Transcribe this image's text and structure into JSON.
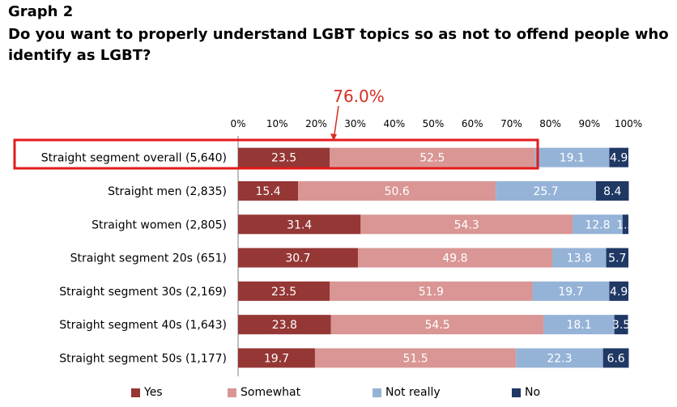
{
  "graph_label": "Graph 2",
  "title": "Do you want to properly understand LGBT topics so as not to offend people who identify as LGBT?",
  "colors": {
    "yes": "#953735",
    "somewhat": "#d99694",
    "not_really": "#95b3d7",
    "no": "#1f3864",
    "highlight": "#e31a1c",
    "callout": "#d62d20"
  },
  "callout_label": "76.0%",
  "chart_data": {
    "type": "bar",
    "orientation": "horizontal",
    "stacked": true,
    "xlim": [
      0,
      100
    ],
    "x_ticks": [
      "0%",
      "10%",
      "20%",
      "30%",
      "40%",
      "50%",
      "60%",
      "70%",
      "80%",
      "90%",
      "100%"
    ],
    "categories": [
      "Straight segment overall (5,640)",
      "Straight men (2,835)",
      "Straight women (2,805)",
      "Straight segment 20s (651)",
      "Straight segment 30s (2,169)",
      "Straight segment 40s (1,643)",
      "Straight segment 50s (1,177)"
    ],
    "series": [
      {
        "name": "Yes",
        "color": "#953735",
        "values": [
          23.5,
          15.4,
          31.4,
          30.7,
          23.5,
          23.8,
          19.7
        ]
      },
      {
        "name": "Somewhat",
        "color": "#d99694",
        "values": [
          52.5,
          50.6,
          54.3,
          49.8,
          51.9,
          54.5,
          51.5
        ]
      },
      {
        "name": "Not really",
        "color": "#95b3d7",
        "values": [
          19.1,
          25.7,
          12.8,
          13.8,
          19.7,
          18.1,
          22.3
        ]
      },
      {
        "name": "No",
        "color": "#1f3864",
        "values": [
          4.9,
          8.4,
          1.5,
          5.7,
          4.9,
          3.5,
          6.6
        ]
      }
    ],
    "legend_position": "bottom",
    "highlighted_category": "Straight segment overall (5,640)"
  }
}
